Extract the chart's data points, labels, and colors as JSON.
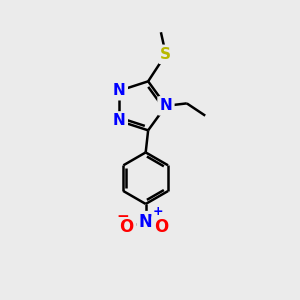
{
  "background_color": "#ebebeb",
  "atom_colors": {
    "N": "#0000ff",
    "S": "#b8b800",
    "O": "#ff0000",
    "C": "#000000"
  },
  "bond_color": "#000000",
  "bond_width": 1.8,
  "font_size_atoms": 11,
  "font_size_charge": 8,
  "xlim": [
    0,
    10
  ],
  "ylim": [
    0,
    12
  ]
}
